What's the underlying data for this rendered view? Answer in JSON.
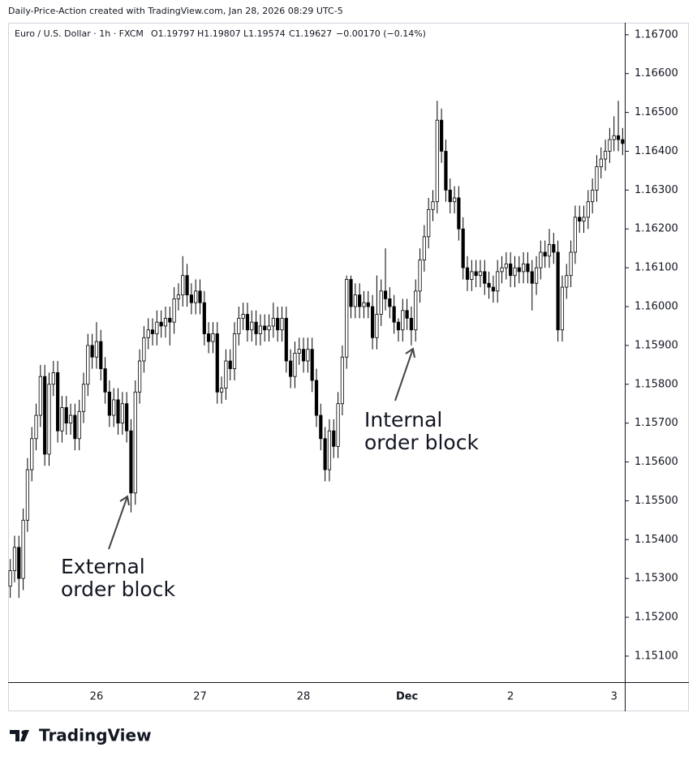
{
  "header": "Daily-Price-Action created with TradingView.com, Jan 28, 2026 08:29 UTC-5",
  "legend": {
    "symbol": "Euro / U.S. Dollar · 1h · FXCM",
    "open": "O1.19797",
    "high": "H1.19807",
    "low": "L1.19574",
    "close": "C1.19627",
    "change": "−0.00170 (−0.14%)"
  },
  "logo": "TradingView",
  "chart_data": {
    "type": "candlestick",
    "up_color": "#ffffff",
    "down_color": "#000000",
    "wick_color": "#000000",
    "ylim": [
      1.15033,
      1.16731
    ],
    "yticks": [
      {
        "value": 1.151,
        "label": "1.15100"
      },
      {
        "value": 1.152,
        "label": "1.15200"
      },
      {
        "value": 1.153,
        "label": "1.15300"
      },
      {
        "value": 1.154,
        "label": "1.15400"
      },
      {
        "value": 1.155,
        "label": "1.15500"
      },
      {
        "value": 1.156,
        "label": "1.15600"
      },
      {
        "value": 1.157,
        "label": "1.15700"
      },
      {
        "value": 1.158,
        "label": "1.15800"
      },
      {
        "value": 1.159,
        "label": "1.15900"
      },
      {
        "value": 1.16,
        "label": "1.16000"
      },
      {
        "value": 1.161,
        "label": "1.16100"
      },
      {
        "value": 1.162,
        "label": "1.16200"
      },
      {
        "value": 1.163,
        "label": "1.16300"
      },
      {
        "value": 1.164,
        "label": "1.16400"
      },
      {
        "value": 1.165,
        "label": "1.16500"
      },
      {
        "value": 1.166,
        "label": "1.16600"
      },
      {
        "value": 1.167,
        "label": "1.16700"
      }
    ],
    "categories": [
      null,
      null,
      null,
      null,
      null,
      null,
      null,
      null,
      null,
      null,
      null,
      null,
      null,
      null,
      null,
      null,
      null,
      null,
      null,
      null,
      "26",
      null,
      null,
      null,
      null,
      null,
      null,
      null,
      null,
      null,
      null,
      null,
      null,
      null,
      null,
      null,
      null,
      null,
      null,
      null,
      null,
      null,
      null,
      null,
      "27",
      null,
      null,
      null,
      null,
      null,
      null,
      null,
      null,
      null,
      null,
      null,
      null,
      null,
      null,
      null,
      null,
      null,
      null,
      null,
      null,
      null,
      null,
      null,
      "28",
      null,
      null,
      null,
      null,
      null,
      null,
      null,
      null,
      null,
      null,
      null,
      null,
      null,
      null,
      null,
      null,
      null,
      null,
      null,
      null,
      null,
      null,
      null,
      "Dec",
      null,
      null,
      null,
      null,
      null,
      null,
      null,
      null,
      null,
      null,
      null,
      null,
      null,
      null,
      null,
      null,
      null,
      null,
      null,
      null,
      null,
      null,
      null,
      "2",
      null,
      null,
      null,
      null,
      null,
      null,
      null,
      null,
      null,
      null,
      null,
      null,
      null,
      null,
      null,
      null,
      null,
      null,
      null,
      null,
      null,
      null,
      null,
      "3",
      null,
      null
    ],
    "open": [
      1.1528,
      1.1532,
      1.1538,
      1.153,
      1.1545,
      1.1558,
      1.1566,
      1.1572,
      1.1582,
      1.1562,
      1.158,
      1.1583,
      1.1568,
      1.1574,
      1.157,
      1.1572,
      1.1566,
      1.1573,
      1.158,
      1.159,
      1.1587,
      1.1591,
      1.1584,
      1.1578,
      1.1572,
      1.1576,
      1.157,
      1.1575,
      1.1568,
      1.1552,
      1.1578,
      1.1586,
      1.1592,
      1.1594,
      1.1593,
      1.1596,
      1.1595,
      1.1597,
      1.1596,
      1.1602,
      1.1603,
      1.1608,
      1.1603,
      1.1601,
      1.1604,
      1.1601,
      1.1593,
      1.1591,
      1.1593,
      1.1578,
      1.1579,
      1.1586,
      1.1584,
      1.1593,
      1.1597,
      1.1598,
      1.1594,
      1.1596,
      1.1593,
      1.1595,
      1.1594,
      1.1595,
      1.1597,
      1.1594,
      1.1597,
      1.1586,
      1.1582,
      1.1588,
      1.1589,
      1.1586,
      1.1589,
      1.1581,
      1.1572,
      1.1566,
      1.1558,
      1.1568,
      1.1564,
      1.1575,
      1.1587,
      1.1607,
      1.16,
      1.1603,
      1.16,
      1.1601,
      1.16,
      1.1592,
      1.1598,
      1.1604,
      1.1602,
      1.16,
      1.1596,
      1.1594,
      1.1599,
      1.1597,
      1.1594,
      1.1604,
      1.1612,
      1.1618,
      1.1625,
      1.1627,
      1.1648,
      1.164,
      1.163,
      1.1627,
      1.1628,
      1.162,
      1.161,
      1.1607,
      1.1609,
      1.1608,
      1.1609,
      1.1606,
      1.1605,
      1.1604,
      1.1609,
      1.161,
      1.1611,
      1.1608,
      1.161,
      1.1609,
      1.1611,
      1.1609,
      1.1606,
      1.161,
      1.1614,
      1.1613,
      1.1616,
      1.1614,
      1.1594,
      1.1605,
      1.1608,
      1.1614,
      1.1623,
      1.1622,
      1.1623,
      1.1627,
      1.163,
      1.1636,
      1.1638,
      1.164,
      1.1643,
      1.1644,
      1.1643
    ],
    "high": [
      1.1535,
      1.1541,
      1.1541,
      1.1548,
      1.1561,
      1.1569,
      1.1575,
      1.1585,
      1.1585,
      1.1583,
      1.1586,
      1.1586,
      1.1577,
      1.1577,
      1.1575,
      1.1575,
      1.1576,
      1.1583,
      1.1593,
      1.1593,
      1.1596,
      1.1594,
      1.1587,
      1.1581,
      1.1579,
      1.1579,
      1.1578,
      1.1578,
      1.1571,
      1.1581,
      1.1589,
      1.1595,
      1.1597,
      1.1597,
      1.1599,
      1.1599,
      1.16,
      1.16,
      1.1605,
      1.1606,
      1.1613,
      1.1611,
      1.1606,
      1.1607,
      1.1607,
      1.1604,
      1.1596,
      1.1596,
      1.1596,
      1.1582,
      1.1589,
      1.1589,
      1.1596,
      1.16,
      1.1601,
      1.1601,
      1.1599,
      1.1599,
      1.1598,
      1.1598,
      1.1598,
      1.1601,
      1.16,
      1.16,
      1.16,
      1.1589,
      1.1591,
      1.1592,
      1.1592,
      1.1592,
      1.1592,
      1.1584,
      1.1575,
      1.1569,
      1.1571,
      1.1571,
      1.1578,
      1.159,
      1.1608,
      1.1608,
      1.1606,
      1.1606,
      1.1604,
      1.1604,
      1.1603,
      1.1608,
      1.1607,
      1.1615,
      1.1605,
      1.1603,
      1.1597,
      1.1602,
      1.1602,
      1.16,
      1.1607,
      1.1615,
      1.1621,
      1.1628,
      1.163,
      1.1653,
      1.1651,
      1.1643,
      1.1633,
      1.1631,
      1.1631,
      1.1623,
      1.1613,
      1.1612,
      1.1612,
      1.1612,
      1.1612,
      1.1609,
      1.1608,
      1.1612,
      1.1613,
      1.1614,
      1.1614,
      1.1613,
      1.1613,
      1.1614,
      1.1614,
      1.1612,
      1.1613,
      1.1617,
      1.1617,
      1.162,
      1.1619,
      1.1617,
      1.1608,
      1.1611,
      1.1617,
      1.1626,
      1.1626,
      1.1626,
      1.163,
      1.1633,
      1.1639,
      1.1641,
      1.1643,
      1.1646,
      1.1649,
      1.1653,
      1.1646
    ],
    "low": [
      1.1525,
      1.1529,
      1.1525,
      1.1527,
      1.1542,
      1.1555,
      1.1563,
      1.1569,
      1.1559,
      1.1559,
      1.1577,
      1.1565,
      1.1565,
      1.1567,
      1.1567,
      1.1563,
      1.1563,
      1.157,
      1.1577,
      1.1584,
      1.1584,
      1.1581,
      1.1575,
      1.1569,
      1.1569,
      1.1567,
      1.1567,
      1.1565,
      1.1547,
      1.1549,
      1.1575,
      1.1583,
      1.1589,
      1.159,
      1.159,
      1.1592,
      1.1592,
      1.159,
      1.1593,
      1.1599,
      1.16,
      1.16,
      1.1598,
      1.1598,
      1.1598,
      1.159,
      1.1588,
      1.1588,
      1.1575,
      1.1575,
      1.1576,
      1.1581,
      1.1581,
      1.159,
      1.1594,
      1.1591,
      1.1591,
      1.159,
      1.159,
      1.1591,
      1.1591,
      1.1592,
      1.1591,
      1.1591,
      1.1583,
      1.1579,
      1.1579,
      1.1585,
      1.1583,
      1.1583,
      1.1578,
      1.1569,
      1.1563,
      1.1555,
      1.1555,
      1.1561,
      1.1561,
      1.1572,
      1.1584,
      1.1597,
      1.1597,
      1.1597,
      1.1597,
      1.1597,
      1.1589,
      1.1589,
      1.1595,
      1.1599,
      1.1597,
      1.1593,
      1.1591,
      1.1591,
      1.1594,
      1.159,
      1.1591,
      1.1601,
      1.1609,
      1.1615,
      1.1622,
      1.1624,
      1.1637,
      1.1627,
      1.1624,
      1.1624,
      1.1617,
      1.1607,
      1.1604,
      1.1604,
      1.1605,
      1.1605,
      1.1603,
      1.1602,
      1.1601,
      1.1601,
      1.1606,
      1.1607,
      1.1605,
      1.1605,
      1.1606,
      1.1606,
      1.1606,
      1.1599,
      1.1603,
      1.1607,
      1.161,
      1.161,
      1.1611,
      1.1591,
      1.1591,
      1.1602,
      1.1605,
      1.1611,
      1.1619,
      1.1619,
      1.162,
      1.1624,
      1.1627,
      1.1633,
      1.1635,
      1.1637,
      1.164,
      1.164,
      1.1639
    ],
    "close": [
      1.1532,
      1.1538,
      1.153,
      1.1545,
      1.1558,
      1.1566,
      1.1572,
      1.1582,
      1.1562,
      1.158,
      1.1583,
      1.1568,
      1.1574,
      1.157,
      1.1572,
      1.1566,
      1.1573,
      1.158,
      1.159,
      1.1587,
      1.1591,
      1.1584,
      1.1578,
      1.1572,
      1.1576,
      1.157,
      1.1575,
      1.1568,
      1.1552,
      1.1578,
      1.1586,
      1.1592,
      1.1594,
      1.1593,
      1.1596,
      1.1595,
      1.1597,
      1.1596,
      1.1602,
      1.1603,
      1.1608,
      1.1603,
      1.1601,
      1.1604,
      1.1601,
      1.1593,
      1.1591,
      1.1593,
      1.1578,
      1.1579,
      1.1586,
      1.1584,
      1.1593,
      1.1597,
      1.1598,
      1.1594,
      1.1596,
      1.1593,
      1.1595,
      1.1594,
      1.1595,
      1.1597,
      1.1594,
      1.1597,
      1.1586,
      1.1582,
      1.1588,
      1.1589,
      1.1586,
      1.1589,
      1.1581,
      1.1572,
      1.1566,
      1.1558,
      1.1568,
      1.1564,
      1.1575,
      1.1587,
      1.1607,
      1.16,
      1.1603,
      1.16,
      1.1601,
      1.16,
      1.1592,
      1.1598,
      1.1604,
      1.1602,
      1.16,
      1.1596,
      1.1594,
      1.1599,
      1.1597,
      1.1594,
      1.1604,
      1.1612,
      1.1618,
      1.1625,
      1.1627,
      1.1648,
      1.164,
      1.163,
      1.1627,
      1.1628,
      1.162,
      1.161,
      1.1607,
      1.1609,
      1.1608,
      1.1609,
      1.1606,
      1.1605,
      1.1604,
      1.1609,
      1.161,
      1.1611,
      1.1608,
      1.161,
      1.1609,
      1.1611,
      1.1609,
      1.1606,
      1.161,
      1.1614,
      1.1613,
      1.1616,
      1.1614,
      1.1594,
      1.1605,
      1.1608,
      1.1614,
      1.1623,
      1.1622,
      1.1623,
      1.1627,
      1.163,
      1.1636,
      1.1638,
      1.164,
      1.1643,
      1.1644,
      1.1643,
      1.1642
    ],
    "annotations": [
      {
        "lines": [
          "External",
          "order block"
        ]
      },
      {
        "lines": [
          "Internal",
          "order block"
        ]
      }
    ]
  }
}
